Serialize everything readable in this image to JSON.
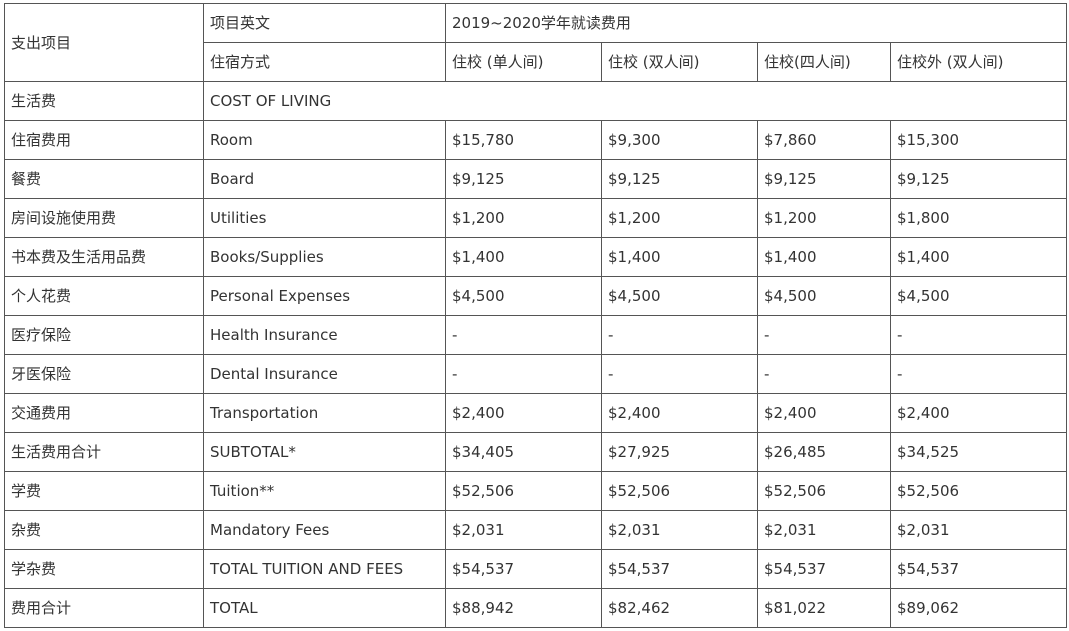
{
  "header": {
    "category_label": "支出项目",
    "english_item_label": "项目英文",
    "year_label": "2019~2020学年就读费用",
    "housing_label": "住宿方式",
    "housing_options": [
      "住校 (单人间)",
      "住校 (双人间)",
      "住校(四人间)",
      "住校外 (双人间)"
    ]
  },
  "section": {
    "cn": "生活费",
    "en": "COST OF LIVING"
  },
  "rows": [
    {
      "cn": "住宿费用",
      "en": "Room",
      "values": [
        "$15,780",
        "$9,300",
        "$7,860",
        "$15,300"
      ]
    },
    {
      "cn": "餐费",
      "en": "Board",
      "values": [
        "$9,125",
        "$9,125",
        "$9,125",
        "$9,125"
      ]
    },
    {
      "cn": "房间设施使用费",
      "en": "Utilities",
      "values": [
        "$1,200",
        "$1,200",
        "$1,200",
        "$1,800"
      ]
    },
    {
      "cn": "书本费及生活用品费",
      "en": "Books/Supplies",
      "values": [
        "$1,400",
        "$1,400",
        "$1,400",
        "$1,400"
      ]
    },
    {
      "cn": "个人花费",
      "en": "Personal Expenses",
      "values": [
        "$4,500",
        "$4,500",
        "$4,500",
        "$4,500"
      ]
    },
    {
      "cn": "医疗保险",
      "en": "Health Insurance",
      "values": [
        "-",
        "-",
        "-",
        "-"
      ]
    },
    {
      "cn": "牙医保险",
      "en": "Dental Insurance",
      "values": [
        "-",
        "-",
        "-",
        "-"
      ]
    },
    {
      "cn": "交通费用",
      "en": "Transportation",
      "values": [
        "$2,400",
        "$2,400",
        "$2,400",
        "$2,400"
      ]
    },
    {
      "cn": "生活费用合计",
      "en": "SUBTOTAL*",
      "values": [
        "$34,405",
        "$27,925",
        "$26,485",
        "$34,525"
      ]
    },
    {
      "cn": "学费",
      "en": "Tuition**",
      "values": [
        "$52,506",
        "$52,506",
        "$52,506",
        "$52,506"
      ]
    },
    {
      "cn": "杂费",
      "en": "Mandatory Fees",
      "values": [
        "$2,031",
        "$2,031",
        "$2,031",
        "$2,031"
      ]
    },
    {
      "cn": "学杂费",
      "en": "TOTAL TUITION AND FEES",
      "values": [
        "$54,537",
        "$54,537",
        "$54,537",
        "$54,537"
      ]
    },
    {
      "cn": "费用合计",
      "en": "TOTAL",
      "values": [
        "$88,942",
        "$82,462",
        "$81,022",
        "$89,062"
      ]
    }
  ]
}
